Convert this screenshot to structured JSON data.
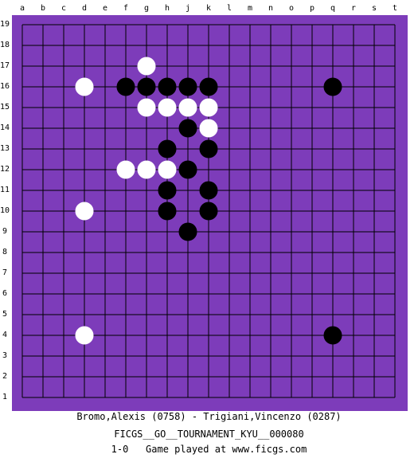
{
  "board": {
    "size": 19,
    "background_color": "#7d3cba",
    "line_color": "#000000",
    "columns": [
      "a",
      "b",
      "c",
      "d",
      "e",
      "f",
      "g",
      "h",
      "j",
      "k",
      "l",
      "m",
      "n",
      "o",
      "p",
      "q",
      "r",
      "s",
      "t"
    ],
    "rows": [
      "19",
      "18",
      "17",
      "16",
      "15",
      "14",
      "13",
      "12",
      "11",
      "10",
      "9",
      "8",
      "7",
      "6",
      "5",
      "4",
      "3",
      "2",
      "1"
    ],
    "black_stones": [
      "f16",
      "g16",
      "h16",
      "j16",
      "k16",
      "q16",
      "j14",
      "h13",
      "k13",
      "j12",
      "h11",
      "k11",
      "h10",
      "k10",
      "j9",
      "q4"
    ],
    "white_stones": [
      "g17",
      "d16",
      "g15",
      "h15",
      "j15",
      "k15",
      "k14",
      "f12",
      "g12",
      "h12",
      "d10",
      "d4"
    ]
  },
  "captions": {
    "players": "Bromo,Alexis (0758) - Trigiani,Vincenzo (0287)",
    "event": "FICGS__GO__TOURNAMENT_KYU__000080",
    "result_line": "1-0   Game played at www.ficgs.com"
  }
}
